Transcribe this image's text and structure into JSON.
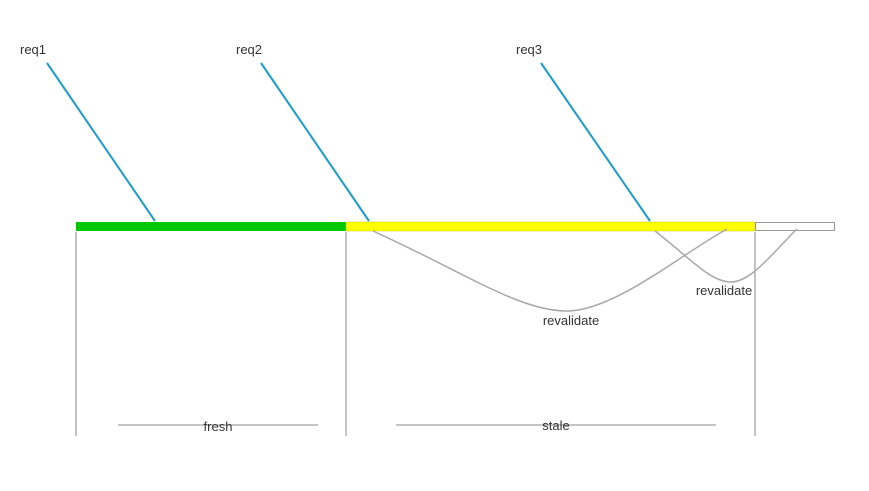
{
  "requests": [
    {
      "label": "req1"
    },
    {
      "label": "req2"
    },
    {
      "label": "req3"
    }
  ],
  "phases": [
    {
      "label": "fresh",
      "color": "#00c800"
    },
    {
      "label": "stale",
      "color": "#ffff00"
    },
    {
      "label": "",
      "color": "#ffffff"
    }
  ],
  "revalidations": [
    {
      "label": "revalidate"
    },
    {
      "label": "revalidate"
    }
  ],
  "colors": {
    "request_line": "#1a9ccc",
    "revalidate_curve": "#a8a8a8",
    "divider": "#888888",
    "bar_border": "#999999",
    "text": "#333333"
  }
}
